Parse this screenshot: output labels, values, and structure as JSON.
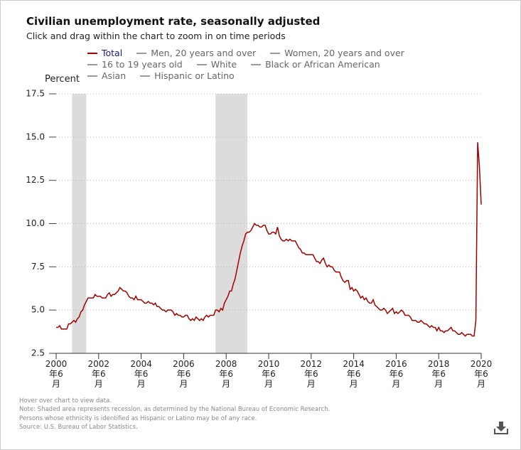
{
  "chart_data": {
    "type": "line",
    "title": "Civilian unemployment rate, seasonally adjusted",
    "subtitle": "Click and drag within the chart to zoom in on time periods",
    "y_label": "Percent",
    "notes": [
      "Hover over chart to view data.",
      "Note: Shaded area represents recession, as determined by the National Bureau of Economic Research.",
      "Persons whose ethnicity is identified as Hispanic or Latino may be of any race.",
      "Source: U.S. Bureau of Labor Statistics."
    ],
    "start": "2000-06",
    "series": [
      {
        "name": "Total",
        "color": "#a00000",
        "visible": true,
        "values": [
          4.0,
          4.0,
          4.1,
          3.9,
          3.9,
          3.9,
          3.9,
          4.2,
          4.2,
          4.3,
          4.4,
          4.3,
          4.5,
          4.6,
          4.9,
          5.0,
          5.3,
          5.5,
          5.7,
          5.7,
          5.7,
          5.7,
          5.9,
          5.8,
          5.8,
          5.8,
          5.7,
          5.7,
          5.7,
          5.9,
          6.0,
          5.8,
          5.9,
          5.9,
          6.0,
          6.1,
          6.3,
          6.2,
          6.1,
          6.1,
          6.0,
          5.8,
          5.7,
          5.7,
          5.6,
          5.8,
          5.6,
          5.6,
          5.6,
          5.5,
          5.4,
          5.4,
          5.5,
          5.4,
          5.4,
          5.3,
          5.4,
          5.2,
          5.2,
          5.1,
          5.0,
          5.0,
          4.9,
          5.0,
          5.0,
          5.0,
          4.9,
          4.7,
          4.8,
          4.7,
          4.7,
          4.6,
          4.6,
          4.7,
          4.7,
          4.5,
          4.4,
          4.5,
          4.4,
          4.6,
          4.5,
          4.4,
          4.5,
          4.4,
          4.6,
          4.7,
          4.6,
          4.7,
          4.7,
          4.7,
          5.0,
          5.0,
          4.9,
          5.1,
          5.0,
          5.4,
          5.6,
          5.8,
          6.1,
          6.1,
          6.5,
          6.8,
          7.3,
          7.8,
          8.3,
          8.7,
          9.0,
          9.4,
          9.5,
          9.5,
          9.6,
          9.8,
          10.0,
          9.9,
          9.9,
          9.8,
          9.8,
          9.9,
          9.9,
          9.6,
          9.4,
          9.4,
          9.5,
          9.5,
          9.4,
          9.8,
          9.3,
          9.1,
          9.0,
          9.0,
          9.1,
          9.0,
          9.1,
          9.0,
          9.0,
          9.0,
          8.8,
          8.6,
          8.5,
          8.3,
          8.3,
          8.2,
          8.2,
          8.2,
          8.2,
          8.2,
          8.0,
          7.8,
          7.8,
          7.7,
          7.9,
          8.0,
          7.7,
          7.5,
          7.6,
          7.5,
          7.5,
          7.3,
          7.2,
          7.2,
          7.2,
          6.9,
          6.7,
          6.6,
          6.7,
          6.7,
          6.2,
          6.3,
          6.1,
          6.2,
          6.1,
          5.9,
          5.7,
          5.8,
          5.6,
          5.7,
          5.5,
          5.4,
          5.4,
          5.6,
          5.3,
          5.2,
          5.1,
          5.0,
          5.0,
          5.1,
          5.0,
          4.8,
          4.9,
          5.0,
          5.1,
          4.8,
          4.9,
          4.8,
          4.9,
          5.0,
          4.9,
          4.7,
          4.7,
          4.7,
          4.6,
          4.4,
          4.4,
          4.4,
          4.3,
          4.3,
          4.4,
          4.3,
          4.2,
          4.2,
          4.1,
          4.0,
          4.1,
          4.0,
          4.0,
          3.8,
          4.0,
          3.8,
          3.8,
          3.7,
          3.8,
          3.8,
          3.9,
          4.0,
          3.8,
          3.8,
          3.7,
          3.6,
          3.6,
          3.7,
          3.6,
          3.5,
          3.6,
          3.6,
          3.6,
          3.5,
          3.5,
          4.4,
          14.7,
          13.3,
          11.1
        ]
      },
      {
        "name": "Men, 20 years and over",
        "color": "#999999",
        "visible": false
      },
      {
        "name": "Women, 20 years and over",
        "color": "#999999",
        "visible": false
      },
      {
        "name": "16 to 19 years old",
        "color": "#999999",
        "visible": false
      },
      {
        "name": "White",
        "color": "#999999",
        "visible": false
      },
      {
        "name": "Black or African American",
        "color": "#999999",
        "visible": false
      },
      {
        "name": "Asian",
        "color": "#999999",
        "visible": false
      },
      {
        "name": "Hispanic or Latino",
        "color": "#999999",
        "visible": false
      }
    ],
    "recessions": [
      [
        "2001-03",
        "2001-11"
      ],
      [
        "2007-12",
        "2009-06"
      ]
    ],
    "xlim": [
      "2000-06",
      "2020-06"
    ],
    "xticks": [
      {
        "value": "2000-06",
        "label": "2000 年6 月"
      },
      {
        "value": "2002-06",
        "label": "2002 年6 月"
      },
      {
        "value": "2004-06",
        "label": "2004 年6 月"
      },
      {
        "value": "2006-06",
        "label": "2006 年6 月"
      },
      {
        "value": "2008-06",
        "label": "2008 年6 月"
      },
      {
        "value": "2010-06",
        "label": "2010 年6 月"
      },
      {
        "value": "2012-06",
        "label": "2012 年6 月"
      },
      {
        "value": "2014-06",
        "label": "2014 年6 月"
      },
      {
        "value": "2016-06",
        "label": "2016 年6 月"
      },
      {
        "value": "2018-06",
        "label": "2018 年6 月"
      },
      {
        "value": "2020-06",
        "label": "2020 年6 月"
      }
    ],
    "ylim": [
      2.5,
      17.5
    ],
    "yticks": [
      2.5,
      {
        "value": 5,
        "label": "5.0"
      },
      {
        "value": 7.5,
        "label": "7.5"
      },
      {
        "value": 10,
        "label": "10.0"
      },
      {
        "value": 12.5,
        "label": "12.5"
      },
      {
        "value": 15,
        "label": "15.0"
      },
      {
        "value": 17.5,
        "label": "17.5"
      }
    ],
    "grid": true
  }
}
